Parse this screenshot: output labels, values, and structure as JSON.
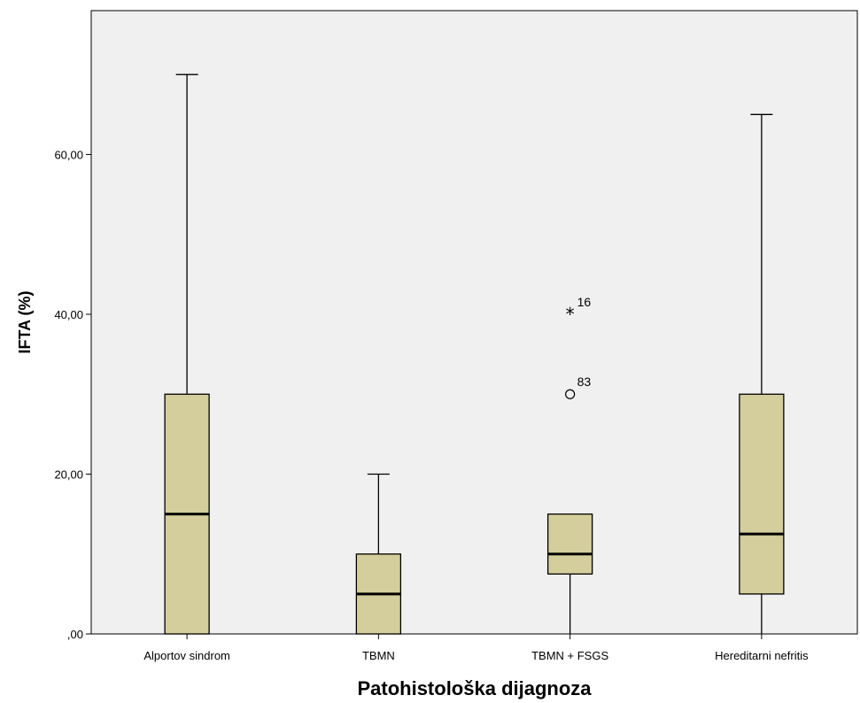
{
  "chart_data": {
    "type": "boxplot",
    "xlabel": "Patohistološka dijagnoza",
    "ylabel": "IFTA (%)",
    "ylim": [
      0,
      78
    ],
    "y_ticks": [
      0,
      20,
      40,
      60
    ],
    "y_tick_labels": [
      ",00",
      "20,00",
      "40,00",
      "60,00"
    ],
    "grid": false,
    "plot_background": "#f0f0f0",
    "box_color": "#d3ce9b",
    "categories": [
      "Alportov sindrom",
      "TBMN",
      "TBMN + FSGS",
      "Hereditarni nefritis"
    ],
    "boxes": [
      {
        "category": "Alportov sindrom",
        "whisker_low": 0,
        "q1": 0,
        "median": 15,
        "q3": 30,
        "whisker_high": 70
      },
      {
        "category": "TBMN",
        "whisker_low": 0,
        "q1": 0,
        "median": 5,
        "q3": 10,
        "whisker_high": 20
      },
      {
        "category": "TBMN + FSGS",
        "whisker_low": 0,
        "q1": 7.5,
        "median": 10,
        "q3": 15,
        "whisker_high": 15
      },
      {
        "category": "Hereditarni nefritis",
        "whisker_low": 0,
        "q1": 5,
        "median": 12.5,
        "q3": 30,
        "whisker_high": 65
      }
    ],
    "outliers": [
      {
        "category": "TBMN + FSGS",
        "value": 40,
        "marker": "star",
        "label": "16"
      },
      {
        "category": "TBMN + FSGS",
        "value": 30,
        "marker": "circle",
        "label": "83"
      }
    ]
  }
}
